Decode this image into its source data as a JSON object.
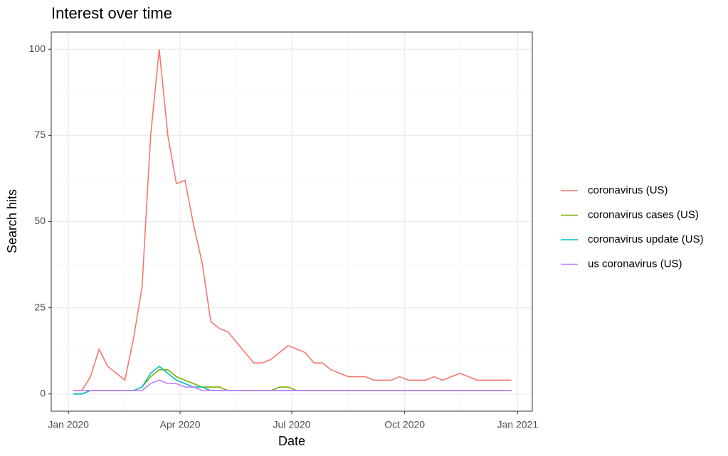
{
  "chart_data": {
    "type": "line",
    "title": "Interest over time",
    "x_label": "Date",
    "y_label": "Search hits",
    "x": [
      4,
      11,
      18,
      25,
      32,
      39,
      46,
      53,
      60,
      67,
      74,
      81,
      88,
      95,
      102,
      109,
      116,
      123,
      130,
      137,
      144,
      151,
      158,
      165,
      172,
      179,
      186,
      193,
      200,
      207,
      214,
      221,
      228,
      235,
      242,
      249,
      256,
      263,
      270,
      277,
      284,
      291,
      298,
      305,
      312,
      319,
      326,
      333,
      340,
      347,
      354,
      361
    ],
    "xlim": [
      -14,
      378
    ],
    "xticks": [
      {
        "value": 0,
        "label": "Jan 2020"
      },
      {
        "value": 91,
        "label": "Apr 2020"
      },
      {
        "value": 182,
        "label": "Jul 2020"
      },
      {
        "value": 274,
        "label": "Oct 2020"
      },
      {
        "value": 366,
        "label": "Jan 2021"
      }
    ],
    "ylim": [
      -5,
      105
    ],
    "yticks": [
      0,
      25,
      50,
      75,
      100
    ],
    "grid": true,
    "legend": "right",
    "series": [
      {
        "name": "coronavirus (US)",
        "color": "#F8766D",
        "values": [
          1,
          1,
          5,
          13,
          8,
          6,
          4,
          16,
          31,
          75,
          100,
          75,
          61,
          62,
          49,
          38,
          21,
          19,
          18,
          15,
          12,
          9,
          9,
          10,
          12,
          14,
          13,
          12,
          9,
          9,
          7,
          6,
          5,
          5,
          5,
          4,
          4,
          4,
          5,
          4,
          4,
          4,
          5,
          4,
          5,
          6,
          5,
          4,
          4,
          4,
          4,
          4
        ]
      },
      {
        "name": "coronavirus cases (US)",
        "color": "#7CAE00",
        "values": [
          0,
          0,
          1,
          1,
          1,
          1,
          1,
          1,
          2,
          5,
          7,
          7,
          5,
          4,
          3,
          2,
          2,
          2,
          1,
          1,
          1,
          1,
          1,
          1,
          2,
          2,
          1,
          1,
          1,
          1,
          1,
          1,
          1,
          1,
          1,
          1,
          1,
          1,
          1,
          1,
          1,
          1,
          1,
          1,
          1,
          1,
          1,
          1,
          1,
          1,
          1,
          1
        ]
      },
      {
        "name": "coronavirus update (US)",
        "color": "#00BFC4",
        "values": [
          0,
          0,
          1,
          1,
          1,
          1,
          1,
          1,
          2,
          6,
          8,
          6,
          4,
          3,
          2,
          2,
          1,
          1,
          1,
          1,
          1,
          1,
          1,
          1,
          1,
          1,
          1,
          1,
          1,
          1,
          1,
          1,
          1,
          1,
          1,
          1,
          1,
          1,
          1,
          1,
          1,
          1,
          1,
          1,
          1,
          1,
          1,
          1,
          1,
          1,
          1,
          1
        ]
      },
      {
        "name": "us coronavirus (US)",
        "color": "#C77CFF",
        "values": [
          1,
          1,
          1,
          1,
          1,
          1,
          1,
          1,
          1,
          3,
          4,
          3,
          3,
          2,
          2,
          1,
          1,
          1,
          1,
          1,
          1,
          1,
          1,
          1,
          1,
          1,
          1,
          1,
          1,
          1,
          1,
          1,
          1,
          1,
          1,
          1,
          1,
          1,
          1,
          1,
          1,
          1,
          1,
          1,
          1,
          1,
          1,
          1,
          1,
          1,
          1,
          1
        ]
      }
    ]
  }
}
